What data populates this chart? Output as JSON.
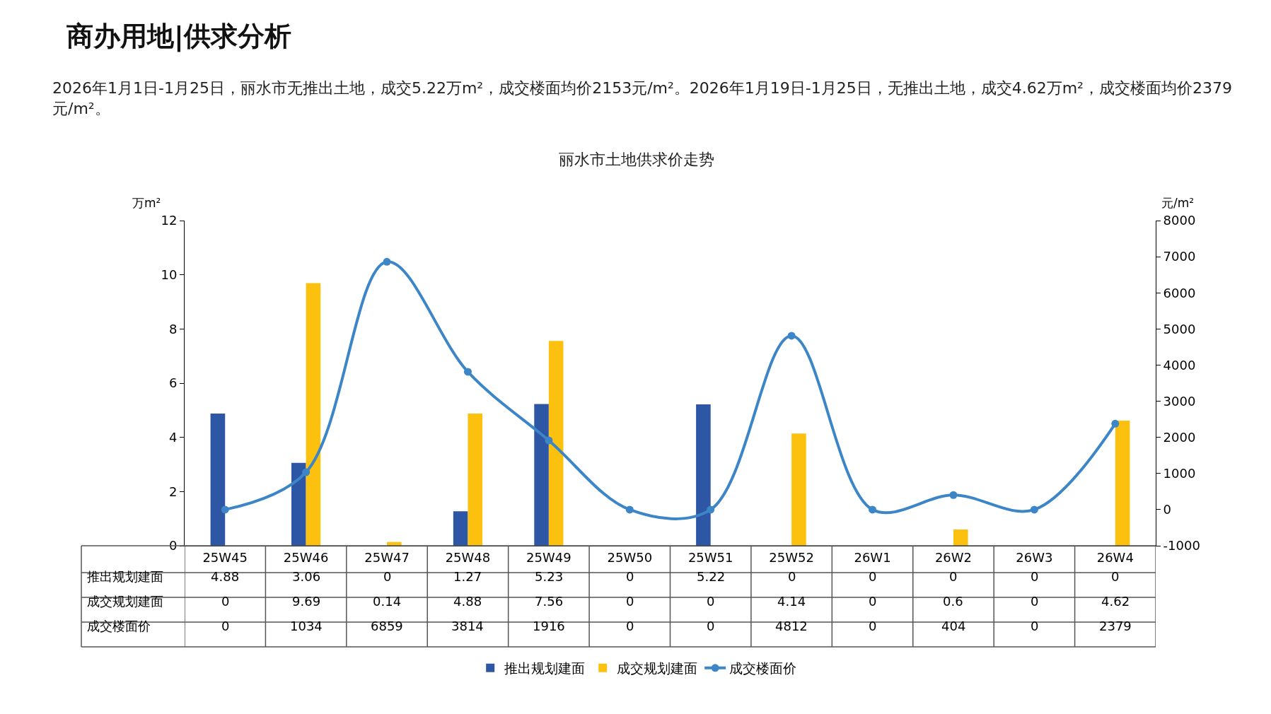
{
  "chart_data": {
    "type": "bar",
    "title": "丽水市土地供求价走势",
    "ylabel": "万m²",
    "y2label": "元/m²",
    "annotations": [
      "商办用地|供求分析",
      "2026年1月1日-1月25日，丽水市无推出土地，成交5.22万m²，成交楼面均价2153元/m²。2026年1月19日-1月25日，无推出土地，成交4.62万m²，成交楼面均价2379元/m²。"
    ],
    "categories": [
      "25W45",
      "25W46",
      "25W47",
      "25W48",
      "25W49",
      "25W50",
      "25W51",
      "25W52",
      "26W1",
      "26W2",
      "26W3",
      "26W4"
    ],
    "series": [
      {
        "name": "推出规划建面",
        "color": "#2d56a5",
        "values": [
          4.88,
          3.06,
          0,
          1.27,
          5.23,
          0,
          5.22,
          0,
          0,
          0,
          0,
          0
        ]
      },
      {
        "name": "成交规划建面",
        "color": "#fcc10f",
        "values": [
          0,
          9.69,
          0.14,
          4.88,
          7.56,
          0,
          0,
          4.14,
          0,
          0.6,
          0,
          4.62
        ]
      },
      {
        "name": "成交楼面价",
        "type": "line",
        "axis": "y2",
        "color": "#3c86c8",
        "marker": "circle",
        "line_style": "solid",
        "values": [
          0,
          1034,
          6859,
          3814,
          1916,
          0,
          0,
          4812,
          0,
          404,
          0,
          2379
        ]
      }
    ],
    "ylim": [
      0,
      12
    ],
    "yticks": [
      0,
      2,
      4,
      6,
      8,
      10,
      12
    ],
    "y2lim": [
      -1000,
      8000
    ],
    "y2ticks": [
      -1000,
      0,
      1000,
      2000,
      3000,
      4000,
      5000,
      6000,
      7000,
      8000
    ],
    "data_labels": true,
    "legend": "bottom"
  }
}
